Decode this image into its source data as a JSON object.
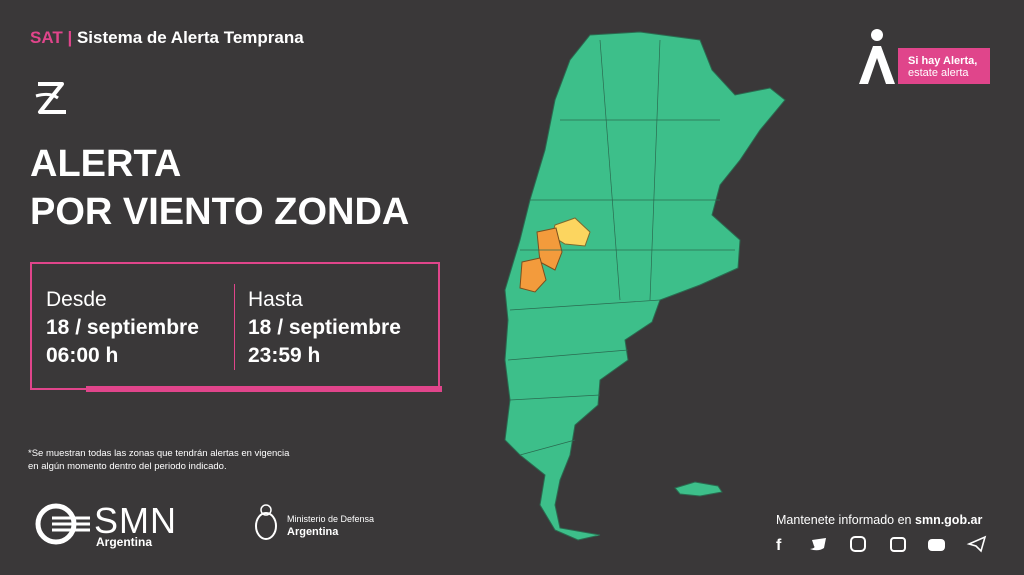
{
  "header": {
    "acronym": "SAT",
    "system": "Sistema de Alerta Temprana",
    "slogan_line1": "Si hay Alerta,",
    "slogan_line2": "estate alerta"
  },
  "alert": {
    "title_line1": "ALERTA",
    "title_line2": "POR VIENTO ZONDA",
    "from": {
      "label": "Desde",
      "date": "18 / septiembre",
      "time": "06:00 h"
    },
    "to": {
      "label": "Hasta",
      "date": "18 / septiembre",
      "time": "23:59 h"
    },
    "note": "*Se muestran todas las zonas que tendrán alertas en vigencia en algún momento dentro del periodo indicado."
  },
  "footer": {
    "org": "SMN",
    "org_country": "Argentina",
    "ministry": "Ministerio de Defensa",
    "ministry_country": "Argentina",
    "info": "Mantenete informado en",
    "website": "smn.gob.ar"
  }
}
